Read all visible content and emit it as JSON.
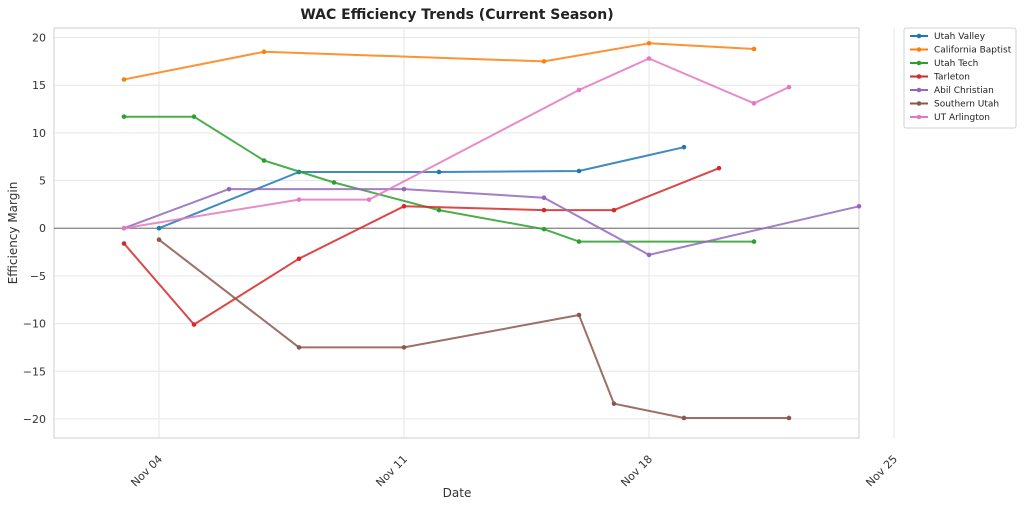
{
  "chart_data": {
    "type": "line",
    "title": "WAC Efficiency Trends (Current Season)",
    "xlabel": "Date",
    "ylabel": "Efficiency Margin",
    "xlim": [
      1.0,
      24.0
    ],
    "ylim": [
      -22,
      21
    ],
    "xticks": [
      {
        "value": 4,
        "label": "Nov 04"
      },
      {
        "value": 11,
        "label": "Nov 11"
      },
      {
        "value": 18,
        "label": "Nov 18"
      },
      {
        "value": 25,
        "label": "Nov 25"
      }
    ],
    "yticks": [
      -20,
      -15,
      -10,
      -5,
      0,
      5,
      10,
      15,
      20
    ],
    "grid": true,
    "zero_line": true,
    "legend_position": "upper-right-outside",
    "series": [
      {
        "name": "Utah Valley",
        "color": "#1f77b4",
        "x": [
          4,
          8,
          12,
          16,
          19
        ],
        "y": [
          0,
          5.9,
          5.9,
          6,
          8.5
        ]
      },
      {
        "name": "California Baptist",
        "color": "#ff7f0e",
        "x": [
          3,
          7,
          15,
          18,
          21
        ],
        "y": [
          15.6,
          18.5,
          17.5,
          19.4,
          18.8
        ]
      },
      {
        "name": "Utah Tech",
        "color": "#2ca02c",
        "x": [
          3,
          5,
          7,
          9,
          12,
          15,
          16,
          21
        ],
        "y": [
          11.7,
          11.7,
          7.1,
          4.8,
          1.9,
          -0.1,
          -1.4,
          -1.4
        ]
      },
      {
        "name": "Tarleton",
        "color": "#d62728",
        "x": [
          3,
          5,
          8,
          11,
          15,
          17,
          20
        ],
        "y": [
          -1.6,
          -10.1,
          -3.2,
          2.3,
          1.9,
          1.9,
          6.3
        ]
      },
      {
        "name": "Abil Christian",
        "color": "#9467bd",
        "x": [
          3,
          6,
          11,
          15,
          18,
          24
        ],
        "y": [
          0,
          4.1,
          4.1,
          3.2,
          -2.8,
          2.3
        ]
      },
      {
        "name": "Southern Utah",
        "color": "#8c564b",
        "x": [
          4,
          8,
          11,
          16,
          17,
          19,
          22
        ],
        "y": [
          -1.2,
          -12.5,
          -12.5,
          -9.1,
          -18.4,
          -19.9,
          -19.9
        ]
      },
      {
        "name": "UT Arlington",
        "color": "#e377c2",
        "x": [
          3,
          8,
          10,
          16,
          18,
          21,
          22
        ],
        "y": [
          0,
          3,
          3,
          14.5,
          17.8,
          13.1,
          14.8
        ]
      }
    ]
  }
}
